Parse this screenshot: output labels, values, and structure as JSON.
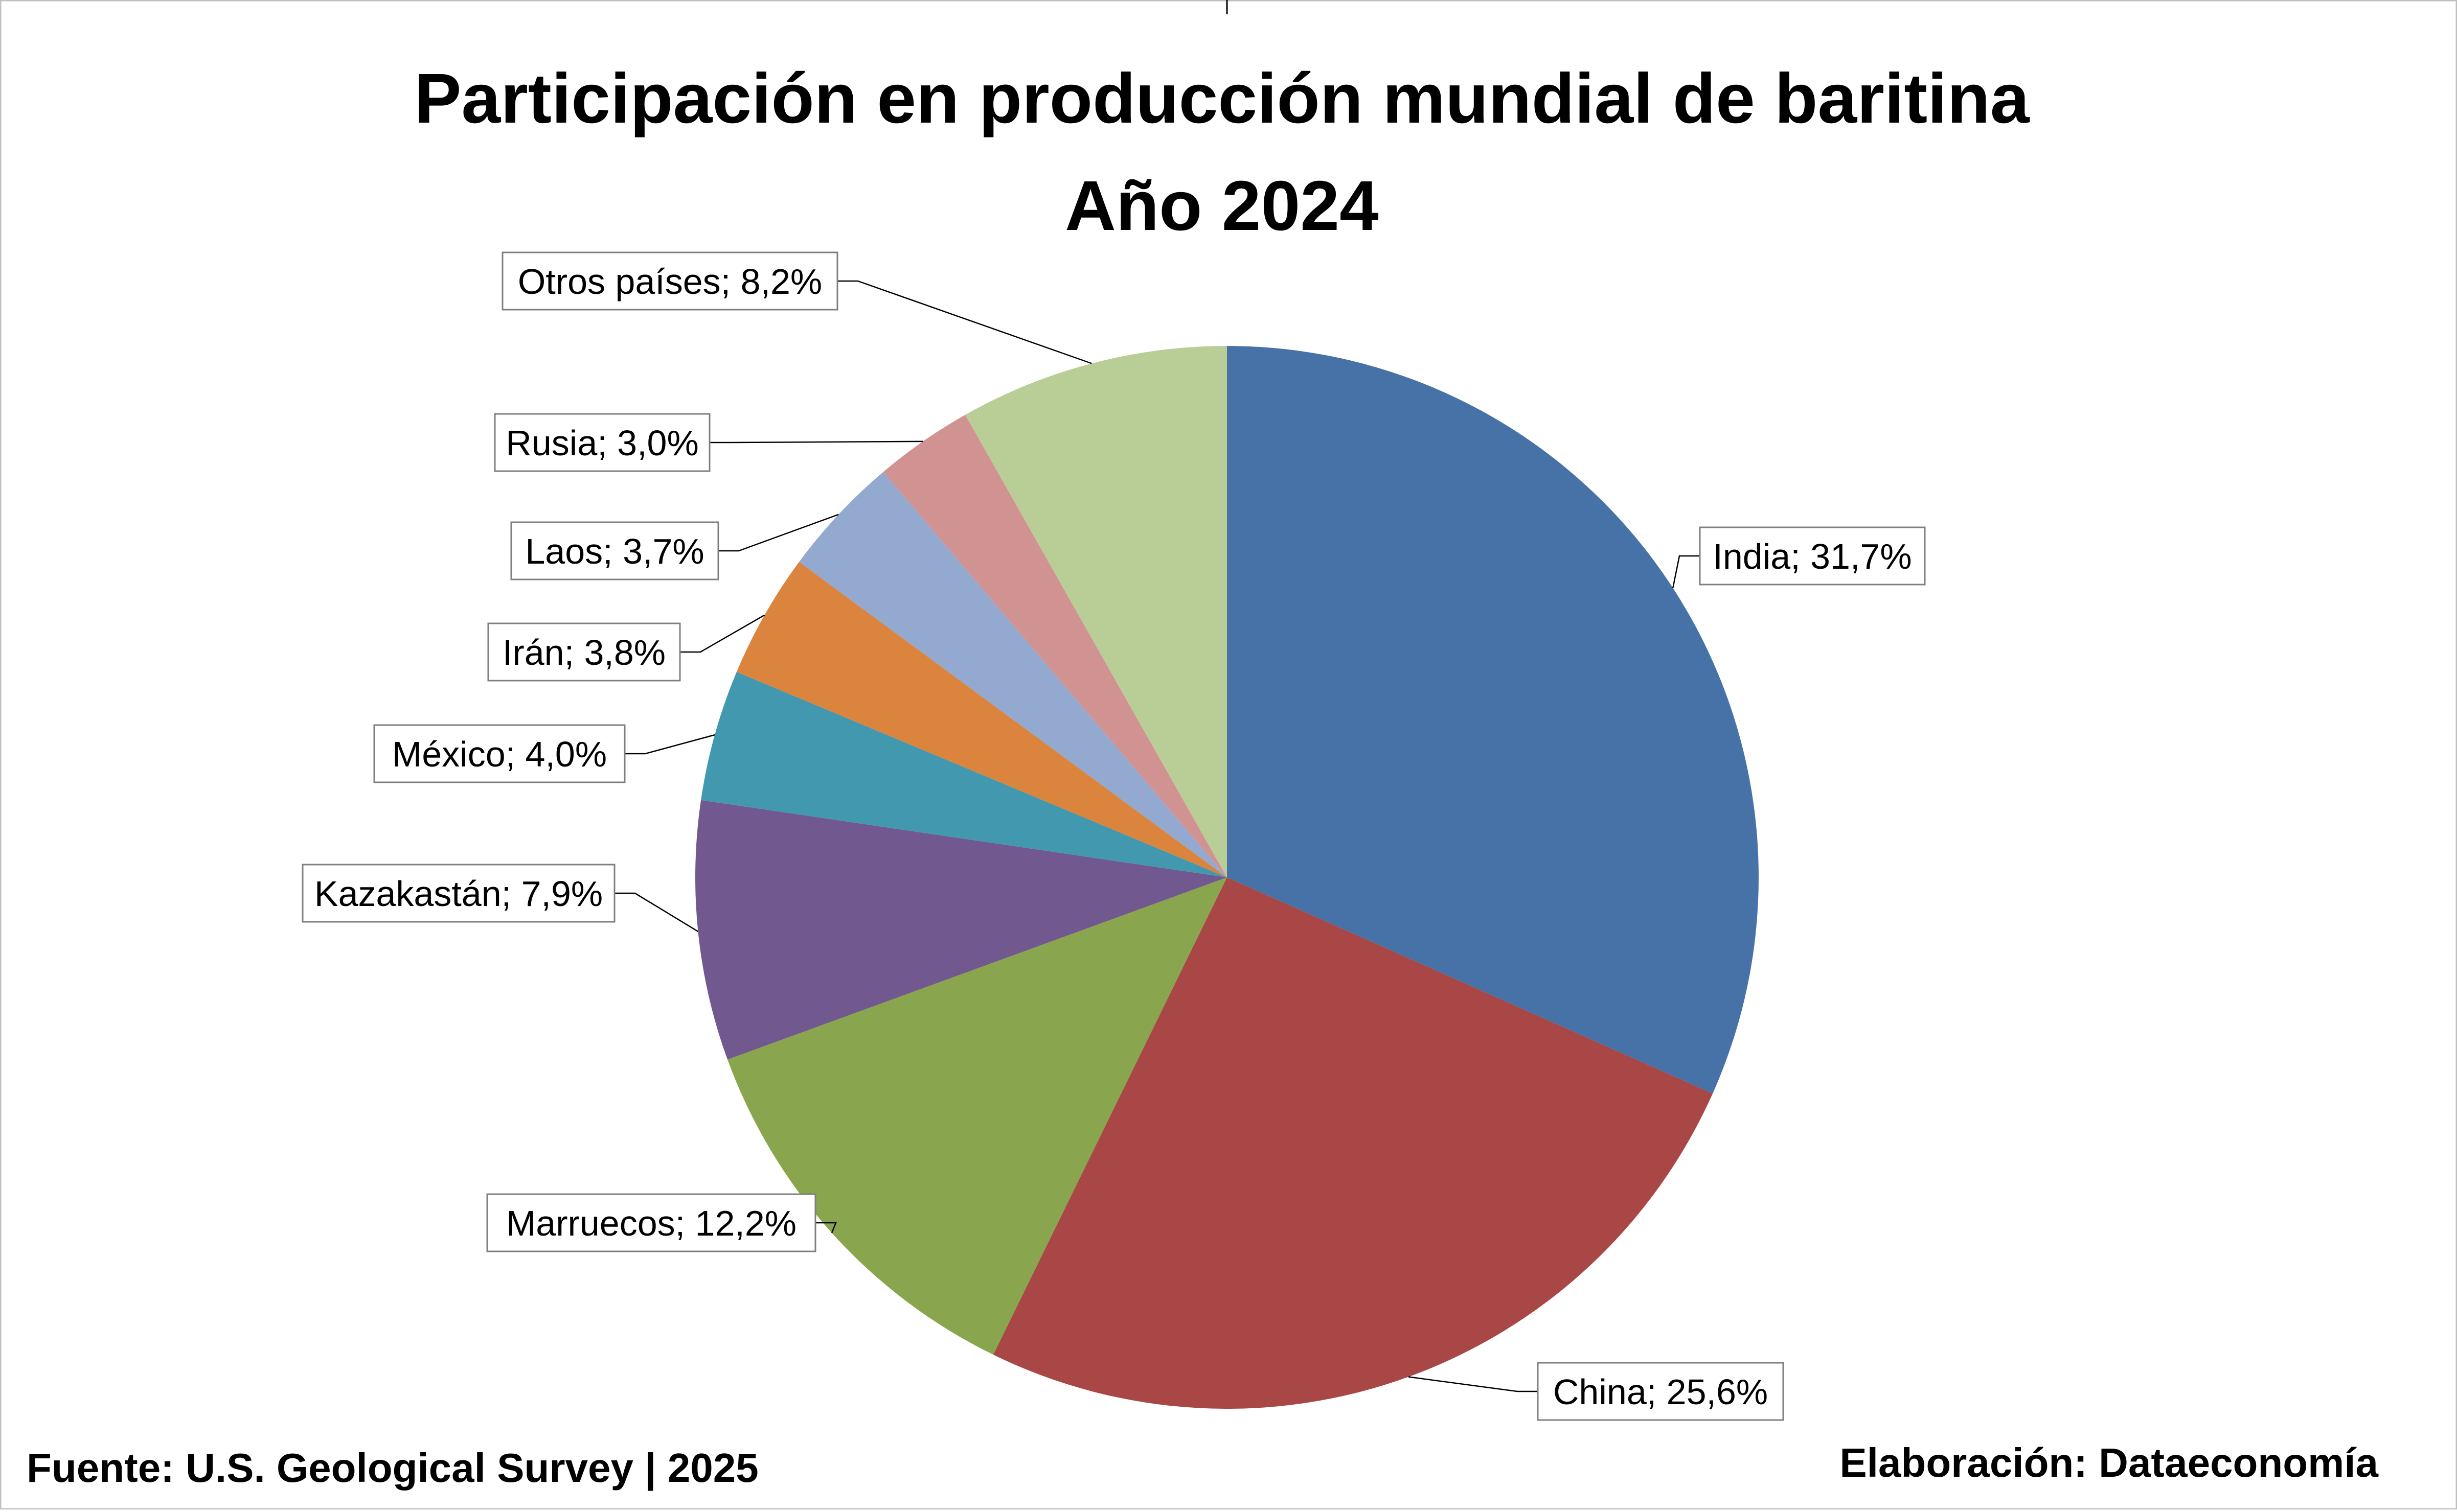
{
  "chart_data": {
    "type": "pie",
    "title": [
      "Participación en producción mundial de baritina",
      "Año 2024"
    ],
    "slices": [
      {
        "label": "India; 31,7%",
        "value": 31.7,
        "color": "#4672A7"
      },
      {
        "label": "China; 25,6%",
        "value": 25.6,
        "color": "#A84746"
      },
      {
        "label": "Marruecos; 12,2%",
        "value": 12.2,
        "color": "#89A54E"
      },
      {
        "label": "Kazakastán; 7,9%",
        "value": 7.9,
        "color": "#71588F"
      },
      {
        "label": "México; 4,0%",
        "value": 4.0,
        "color": "#4198AF"
      },
      {
        "label": "Irán; 3,8%",
        "value": 3.8,
        "color": "#DB843D"
      },
      {
        "label": "Laos; 3,7%",
        "value": 3.7,
        "color": "#93A9CF"
      },
      {
        "label": "Rusia; 3,0%",
        "value": 3.0,
        "color": "#D19392"
      },
      {
        "label": "Otros países; 8,2%",
        "value": 8.2,
        "color": "#B9CD96"
      }
    ]
  },
  "footer": {
    "source": "Fuente: U.S. Geological Survey | 2025",
    "credit": "Elaboración: Dataeconomía"
  }
}
